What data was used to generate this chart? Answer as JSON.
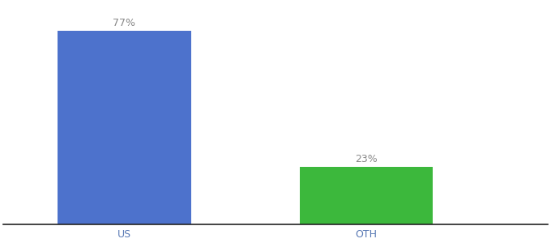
{
  "categories": [
    "US",
    "OTH"
  ],
  "values": [
    77,
    23
  ],
  "bar_colors": [
    "#4d72cc",
    "#3cb83c"
  ],
  "label_color": "#888888",
  "axis_label_color": "#5a7ab5",
  "background_color": "#ffffff",
  "ylim": [
    0,
    88
  ],
  "bar_width": 0.55,
  "label_fontsize": 9,
  "tick_fontsize": 9
}
